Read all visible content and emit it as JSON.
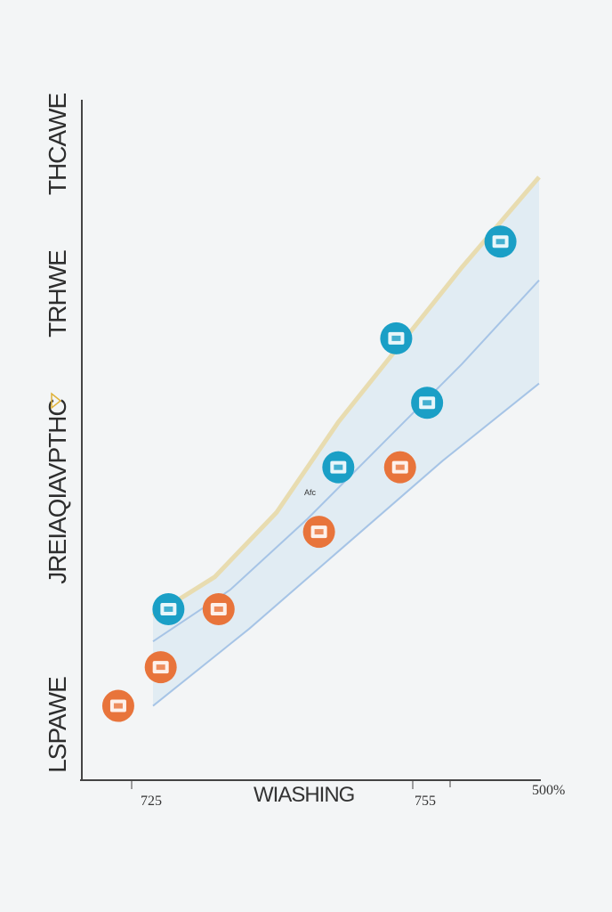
{
  "chart_data": {
    "type": "area",
    "title": "",
    "xlabel": "WIASHING",
    "ylabel": "",
    "ylim": [
      0,
      1
    ],
    "grid": false,
    "legend": "none",
    "x_ticks": [
      "725",
      "755",
      "500%"
    ],
    "y_labels": [
      "THCAWE",
      "TRHWE",
      "JREIAQIAVPTHC",
      "LSPAWE"
    ],
    "annotation": "Afc",
    "series": [
      {
        "x": [
          0.0,
          0.16,
          0.32,
          0.48,
          0.64,
          0.8,
          1.0
        ],
        "values": [
          0.2,
          0.26,
          0.36,
          0.5,
          0.62,
          0.74,
          0.88
        ]
      },
      {
        "x": [
          0.0,
          0.2,
          0.4,
          0.6,
          0.8,
          1.0
        ],
        "values": [
          0.16,
          0.24,
          0.35,
          0.47,
          0.59,
          0.72
        ]
      },
      {
        "x": [
          0.0,
          0.25,
          0.5,
          0.75,
          1.0
        ],
        "values": [
          0.06,
          0.18,
          0.31,
          0.44,
          0.56
        ]
      }
    ],
    "markers": [
      {
        "x": -0.09,
        "y": 0.06,
        "color": "#e8743b",
        "icon": "id-card-icon"
      },
      {
        "x": 0.02,
        "y": 0.12,
        "color": "#e8743b",
        "icon": "tent-icon"
      },
      {
        "x": 0.17,
        "y": 0.21,
        "color": "#e8743b",
        "icon": "machine-icon"
      },
      {
        "x": 0.43,
        "y": 0.33,
        "color": "#e8743b",
        "icon": "document-icon"
      },
      {
        "x": 0.64,
        "y": 0.43,
        "color": "#e8743b",
        "icon": "monitor-icon"
      },
      {
        "x": 0.71,
        "y": 0.53,
        "color": "#1a9fc6",
        "icon": "printer-icon"
      },
      {
        "x": 0.48,
        "y": 0.43,
        "color": "#1a9fc6",
        "icon": "phone-icon"
      },
      {
        "x": 0.63,
        "y": 0.63,
        "color": "#1a9fc6",
        "icon": "gear-icon"
      },
      {
        "x": 0.9,
        "y": 0.78,
        "color": "#1a9fc6",
        "icon": "face-icon"
      },
      {
        "x": 0.04,
        "y": 0.21,
        "color": "#1a9fc6",
        "icon": "ring-icon"
      }
    ],
    "colors": {
      "fill": "#dbe8f1",
      "edge": "#e8dcb0",
      "line": "#a6c4e6",
      "orange": "#e8743b",
      "teal": "#1a9fc6"
    }
  }
}
